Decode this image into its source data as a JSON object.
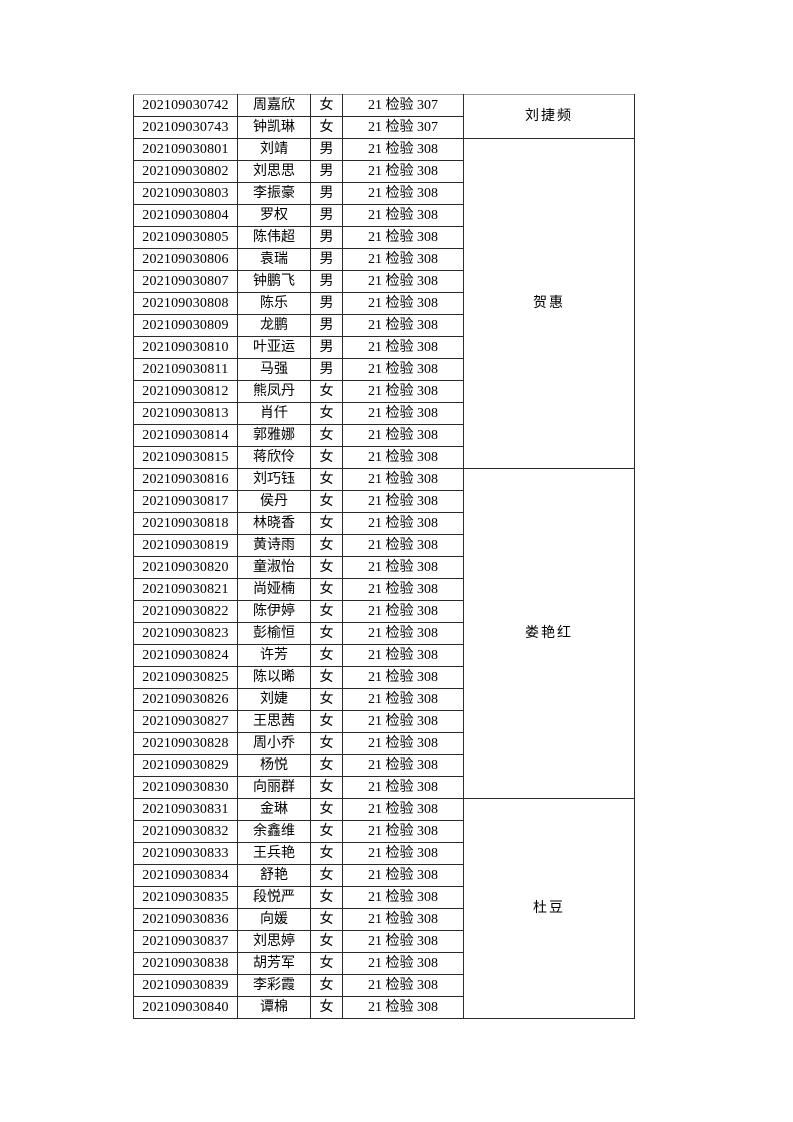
{
  "document": {
    "page_background": "#ffffff",
    "text_color": "#000000",
    "border_color": "#2b2b2b",
    "page_break_border_color": "#9b9b9b"
  },
  "table": {
    "column_keys": [
      "student_id",
      "name",
      "gender",
      "class_name",
      "teacher"
    ],
    "groups": [
      {
        "teacher": "刘捷频",
        "rows": [
          {
            "student_id": "202109030742",
            "name": "周嘉欣",
            "gender": "女",
            "class_name": "21 检验 307"
          },
          {
            "student_id": "202109030743",
            "name": "钟凯琳",
            "gender": "女",
            "class_name": "21 检验 307"
          }
        ]
      },
      {
        "teacher": "贺惠",
        "rows": [
          {
            "student_id": "202109030801",
            "name": "刘靖",
            "gender": "男",
            "class_name": "21 检验 308"
          },
          {
            "student_id": "202109030802",
            "name": "刘思思",
            "gender": "男",
            "class_name": "21 检验 308"
          },
          {
            "student_id": "202109030803",
            "name": "李振豪",
            "gender": "男",
            "class_name": "21 检验 308"
          },
          {
            "student_id": "202109030804",
            "name": "罗权",
            "gender": "男",
            "class_name": "21 检验 308"
          },
          {
            "student_id": "202109030805",
            "name": "陈伟超",
            "gender": "男",
            "class_name": "21 检验 308"
          },
          {
            "student_id": "202109030806",
            "name": "袁瑞",
            "gender": "男",
            "class_name": "21 检验 308"
          },
          {
            "student_id": "202109030807",
            "name": "钟鹏飞",
            "gender": "男",
            "class_name": "21 检验 308"
          },
          {
            "student_id": "202109030808",
            "name": "陈乐",
            "gender": "男",
            "class_name": "21 检验 308"
          },
          {
            "student_id": "202109030809",
            "name": "龙鹏",
            "gender": "男",
            "class_name": "21 检验 308"
          },
          {
            "student_id": "202109030810",
            "name": "叶亚运",
            "gender": "男",
            "class_name": "21 检验 308"
          },
          {
            "student_id": "202109030811",
            "name": "马强",
            "gender": "男",
            "class_name": "21 检验 308"
          },
          {
            "student_id": "202109030812",
            "name": "熊凤丹",
            "gender": "女",
            "class_name": "21 检验 308"
          },
          {
            "student_id": "202109030813",
            "name": "肖仟",
            "gender": "女",
            "class_name": "21 检验 308"
          },
          {
            "student_id": "202109030814",
            "name": "郭雅娜",
            "gender": "女",
            "class_name": "21 检验 308"
          },
          {
            "student_id": "202109030815",
            "name": "蒋欣伶",
            "gender": "女",
            "class_name": "21 检验 308"
          }
        ]
      },
      {
        "teacher": "娄艳红",
        "rows": [
          {
            "student_id": "202109030816",
            "name": "刘巧钰",
            "gender": "女",
            "class_name": "21 检验 308"
          },
          {
            "student_id": "202109030817",
            "name": "侯丹",
            "gender": "女",
            "class_name": "21 检验 308"
          },
          {
            "student_id": "202109030818",
            "name": "林晓香",
            "gender": "女",
            "class_name": "21 检验 308"
          },
          {
            "student_id": "202109030819",
            "name": "黄诗雨",
            "gender": "女",
            "class_name": "21 检验 308"
          },
          {
            "student_id": "202109030820",
            "name": "童淑怡",
            "gender": "女",
            "class_name": "21 检验 308"
          },
          {
            "student_id": "202109030821",
            "name": "尚娅楠",
            "gender": "女",
            "class_name": "21 检验 308"
          },
          {
            "student_id": "202109030822",
            "name": "陈伊婷",
            "gender": "女",
            "class_name": "21 检验 308"
          },
          {
            "student_id": "202109030823",
            "name": "彭榆恒",
            "gender": "女",
            "class_name": "21 检验 308"
          },
          {
            "student_id": "202109030824",
            "name": "许芳",
            "gender": "女",
            "class_name": "21 检验 308"
          },
          {
            "student_id": "202109030825",
            "name": "陈以晞",
            "gender": "女",
            "class_name": "21 检验 308"
          },
          {
            "student_id": "202109030826",
            "name": "刘婕",
            "gender": "女",
            "class_name": "21 检验 308"
          },
          {
            "student_id": "202109030827",
            "name": "王思茜",
            "gender": "女",
            "class_name": "21 检验 308"
          },
          {
            "student_id": "202109030828",
            "name": "周小乔",
            "gender": "女",
            "class_name": "21 检验 308"
          },
          {
            "student_id": "202109030829",
            "name": "杨悦",
            "gender": "女",
            "class_name": "21 检验 308"
          },
          {
            "student_id": "202109030830",
            "name": "向丽群",
            "gender": "女",
            "class_name": "21 检验 308"
          }
        ]
      },
      {
        "teacher": "杜豆",
        "rows": [
          {
            "student_id": "202109030831",
            "name": "金琳",
            "gender": "女",
            "class_name": "21 检验 308"
          },
          {
            "student_id": "202109030832",
            "name": "余鑫维",
            "gender": "女",
            "class_name": "21 检验 308"
          },
          {
            "student_id": "202109030833",
            "name": "王兵艳",
            "gender": "女",
            "class_name": "21 检验 308"
          },
          {
            "student_id": "202109030834",
            "name": "舒艳",
            "gender": "女",
            "class_name": "21 检验 308"
          },
          {
            "student_id": "202109030835",
            "name": "段悦严",
            "gender": "女",
            "class_name": "21 检验 308"
          },
          {
            "student_id": "202109030836",
            "name": "向媛",
            "gender": "女",
            "class_name": "21 检验 308"
          },
          {
            "student_id": "202109030837",
            "name": "刘思婷",
            "gender": "女",
            "class_name": "21 检验 308"
          },
          {
            "student_id": "202109030838",
            "name": "胡芳军",
            "gender": "女",
            "class_name": "21 检验 308"
          },
          {
            "student_id": "202109030839",
            "name": "李彩霞",
            "gender": "女",
            "class_name": "21 检验 308"
          },
          {
            "student_id": "202109030840",
            "name": "谭棉",
            "gender": "女",
            "class_name": "21 检验 308"
          }
        ]
      }
    ]
  }
}
